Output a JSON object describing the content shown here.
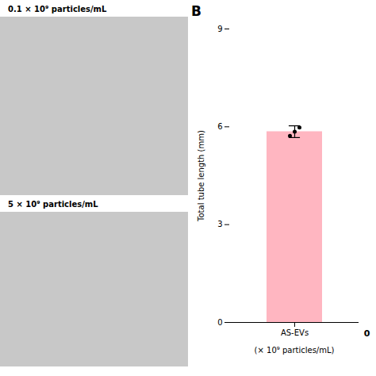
{
  "chart_data": {
    "type": "bar",
    "title": "B",
    "categories": [
      "AS-EVs"
    ],
    "values": [
      5.85
    ],
    "errors": [
      0.18
    ],
    "points": [
      5.72,
      5.85,
      5.98
    ],
    "color": "#FFB6C1",
    "ylabel": "Total tube length (mm)",
    "xlabel": "(× 10⁹ particles/mL)",
    "ylim": [
      0,
      9
    ],
    "yticks": [
      0,
      3,
      6,
      9
    ],
    "annotations": [
      "0.1 × 10⁹ particles/mL",
      "5 × 10⁹ particles/mL",
      "0"
    ]
  }
}
